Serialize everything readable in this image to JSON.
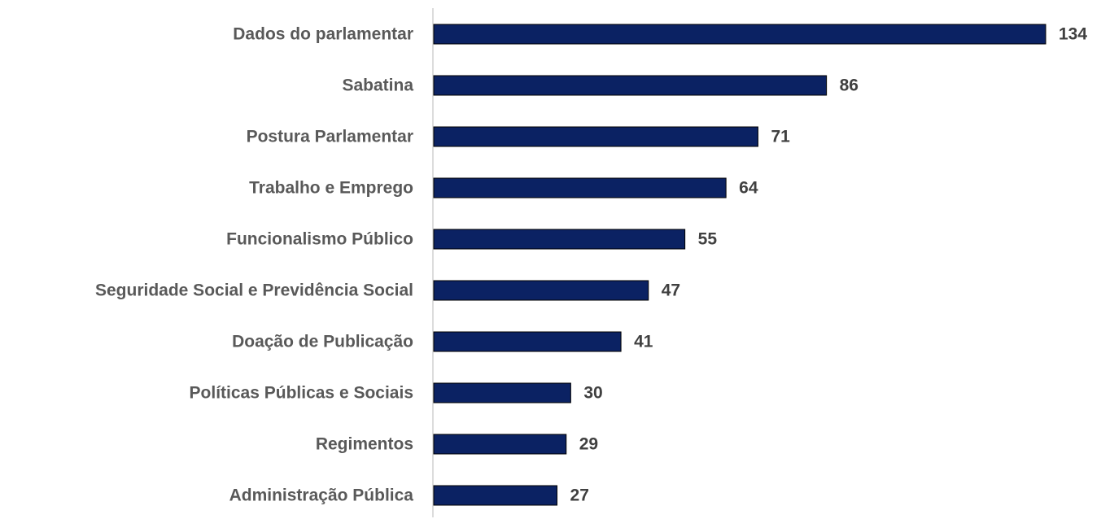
{
  "chart_data": {
    "type": "bar",
    "orientation": "horizontal",
    "categories": [
      "Dados do parlamentar",
      "Sabatina",
      "Postura Parlamentar",
      "Trabalho e Emprego",
      "Funcionalismo Público",
      "Seguridade Social e Previdência Social",
      "Doação de Publicação",
      "Políticas Públicas e Sociais",
      "Regimentos",
      "Administração Pública"
    ],
    "values": [
      134,
      86,
      71,
      64,
      55,
      47,
      41,
      30,
      29,
      27
    ],
    "color": "#0b2263"
  }
}
